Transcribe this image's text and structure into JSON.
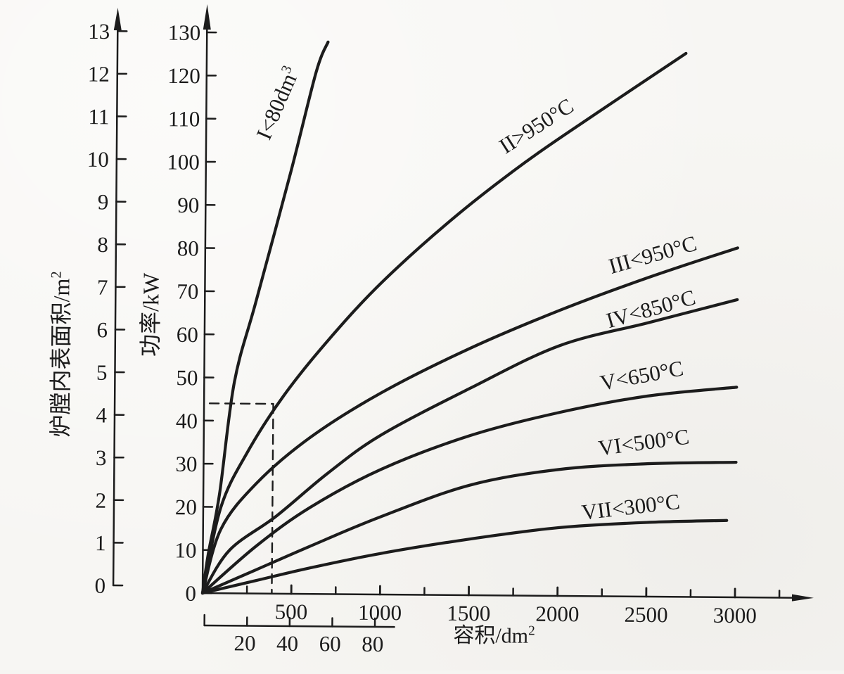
{
  "colors": {
    "ink": "#1c1c1c",
    "paper": "#f7f6f3"
  },
  "chart_data": {
    "type": "line",
    "title": "",
    "x_axis": {
      "label": "容积/dm",
      "label_sup": "2",
      "ticks": [
        500,
        1000,
        1500,
        2000,
        2500,
        3000
      ],
      "minor_ticks": [
        250,
        750,
        1250,
        1750,
        2250,
        2750,
        3250
      ],
      "range": [
        0,
        3400
      ],
      "grid": false
    },
    "x_axis_secondary": {
      "description": "small-furnace volume scale used for curve I",
      "ticks": [
        20,
        40,
        60,
        80
      ],
      "range": [
        0,
        88
      ]
    },
    "y_axis_power": {
      "label": "功率/kW",
      "ticks": [
        0,
        10,
        20,
        30,
        40,
        50,
        60,
        70,
        80,
        90,
        100,
        110,
        120,
        130
      ],
      "range": [
        0,
        135
      ]
    },
    "y_axis_surface": {
      "label": "炉膛内表面积/m",
      "label_sup": "2",
      "ticks": [
        0,
        1,
        2,
        3,
        4,
        5,
        6,
        7,
        8,
        9,
        10,
        11,
        12,
        13
      ],
      "range": [
        0,
        13.5
      ]
    },
    "dashed_guide": {
      "power_kw": 44,
      "volume": 390
    },
    "series": [
      {
        "name": "I",
        "label_main": "I<80dm",
        "label_sup": "3",
        "note": "read against lower 0-80 dm3 scale",
        "points": [
          [
            0,
            0
          ],
          [
            30,
            9
          ],
          [
            91,
            23
          ],
          [
            170,
            49
          ],
          [
            290,
            68
          ],
          [
            480,
            98
          ],
          [
            617,
            121
          ],
          [
            683,
            128
          ]
        ]
      },
      {
        "name": "II",
        "label_main": "II>950°C",
        "label_sup": "",
        "points": [
          [
            0,
            0
          ],
          [
            100,
            20
          ],
          [
            250,
            33
          ],
          [
            450,
            46
          ],
          [
            700,
            59
          ],
          [
            1000,
            72.5
          ],
          [
            1400,
            87.5
          ],
          [
            1800,
            100.5
          ],
          [
            2200,
            112
          ],
          [
            2700,
            126
          ]
        ]
      },
      {
        "name": "III",
        "label_main": "III<950°C",
        "label_sup": "",
        "points": [
          [
            0,
            0
          ],
          [
            100,
            14.8
          ],
          [
            300,
            25.6
          ],
          [
            600,
            36.3
          ],
          [
            1000,
            46.8
          ],
          [
            1500,
            57.3
          ],
          [
            2000,
            66.2
          ],
          [
            2500,
            74
          ],
          [
            3000,
            81
          ]
        ]
      },
      {
        "name": "IV",
        "label_main": "IV<850°C",
        "label_sup": "",
        "points": [
          [
            0,
            0
          ],
          [
            150,
            10
          ],
          [
            413,
            18
          ],
          [
            700,
            28
          ],
          [
            1000,
            37
          ],
          [
            1500,
            48
          ],
          [
            2000,
            58
          ],
          [
            2500,
            63.5
          ],
          [
            3000,
            69
          ]
        ]
      },
      {
        "name": "V",
        "label_main": "V<650°C",
        "label_sup": "",
        "points": [
          [
            0,
            0
          ],
          [
            300,
            11
          ],
          [
            600,
            20
          ],
          [
            1000,
            29
          ],
          [
            1500,
            37
          ],
          [
            2000,
            42.5
          ],
          [
            2500,
            46.5
          ],
          [
            3000,
            48.7
          ]
        ]
      },
      {
        "name": "VI",
        "label_main": "VI<500°C",
        "label_sup": "",
        "points": [
          [
            0,
            0
          ],
          [
            300,
            5.5
          ],
          [
            600,
            11
          ],
          [
            1000,
            18
          ],
          [
            1500,
            25.5
          ],
          [
            2000,
            29.3
          ],
          [
            2500,
            30.8
          ],
          [
            3000,
            31.3
          ]
        ]
      },
      {
        "name": "VII",
        "label_main": "VII<300°C",
        "label_sup": "",
        "points": [
          [
            0,
            0
          ],
          [
            300,
            3
          ],
          [
            600,
            6
          ],
          [
            1000,
            9.5
          ],
          [
            1500,
            13
          ],
          [
            2000,
            15.8
          ],
          [
            2500,
            17.2
          ],
          [
            2950,
            17.8
          ]
        ]
      }
    ]
  }
}
